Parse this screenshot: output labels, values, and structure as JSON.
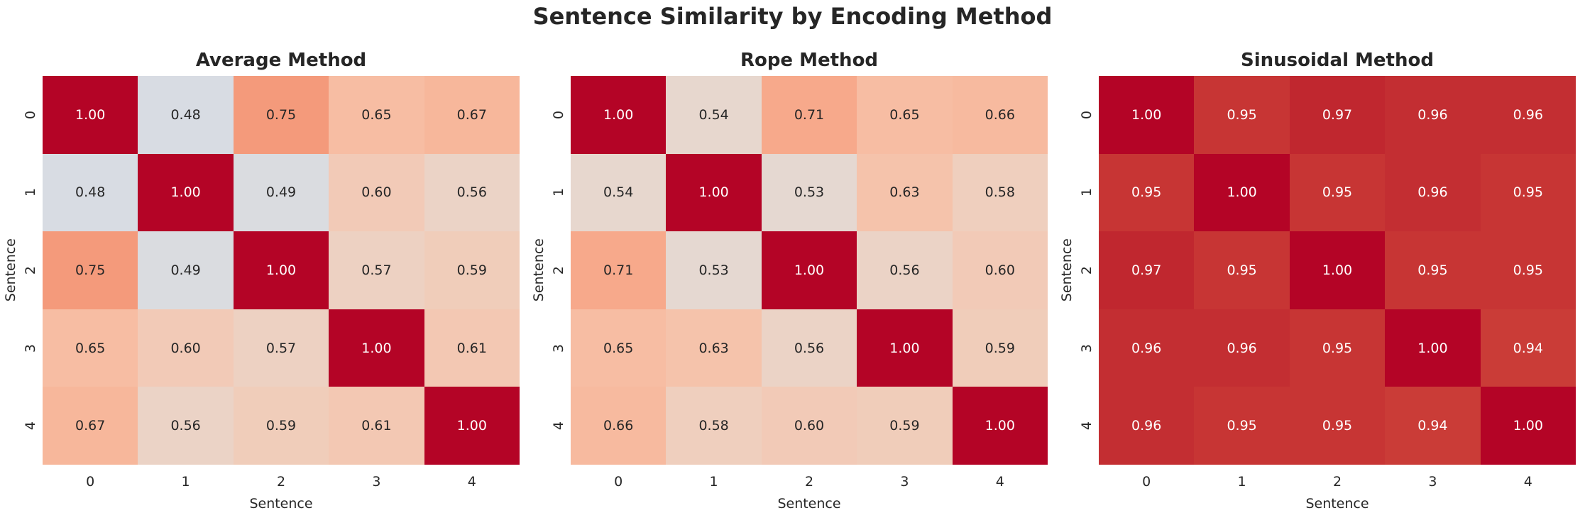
{
  "suptitle": "Sentence Similarity by Encoding Method",
  "colors": {
    "background": "#ffffff",
    "title_text": "#262626",
    "dark_annot_text": "#262626",
    "light_annot_text": "#ffffff",
    "diagonal_max_color": "#b40426"
  },
  "chart_data": [
    {
      "type": "heatmap",
      "title": "Average Method",
      "xlabel": "Sentence",
      "ylabel": "Sentence",
      "x_ticks": [
        "0",
        "1",
        "2",
        "3",
        "4"
      ],
      "y_ticks": [
        "0",
        "1",
        "2",
        "3",
        "4"
      ],
      "colormap": "coolwarm",
      "vmin": 0,
      "vmax": 1,
      "value_format": ".2f",
      "values": [
        [
          1.0,
          0.48,
          0.75,
          0.65,
          0.67
        ],
        [
          0.48,
          1.0,
          0.49,
          0.6,
          0.56
        ],
        [
          0.75,
          0.49,
          1.0,
          0.57,
          0.59
        ],
        [
          0.65,
          0.6,
          0.57,
          1.0,
          0.61
        ],
        [
          0.67,
          0.56,
          0.59,
          0.61,
          1.0
        ]
      ]
    },
    {
      "type": "heatmap",
      "title": "Rope Method",
      "xlabel": "Sentence",
      "ylabel": "Sentence",
      "x_ticks": [
        "0",
        "1",
        "2",
        "3",
        "4"
      ],
      "y_ticks": [
        "0",
        "1",
        "2",
        "3",
        "4"
      ],
      "colormap": "coolwarm",
      "vmin": 0,
      "vmax": 1,
      "value_format": ".2f",
      "values": [
        [
          1.0,
          0.54,
          0.71,
          0.65,
          0.66
        ],
        [
          0.54,
          1.0,
          0.53,
          0.63,
          0.58
        ],
        [
          0.71,
          0.53,
          1.0,
          0.56,
          0.6
        ],
        [
          0.65,
          0.63,
          0.56,
          1.0,
          0.59
        ],
        [
          0.66,
          0.58,
          0.6,
          0.59,
          1.0
        ]
      ]
    },
    {
      "type": "heatmap",
      "title": "Sinusoidal Method",
      "xlabel": "Sentence",
      "ylabel": "Sentence",
      "x_ticks": [
        "0",
        "1",
        "2",
        "3",
        "4"
      ],
      "y_ticks": [
        "0",
        "1",
        "2",
        "3",
        "4"
      ],
      "colormap": "coolwarm",
      "vmin": 0,
      "vmax": 1,
      "value_format": ".2f",
      "values": [
        [
          1.0,
          0.95,
          0.97,
          0.96,
          0.96
        ],
        [
          0.95,
          1.0,
          0.95,
          0.96,
          0.95
        ],
        [
          0.97,
          0.95,
          1.0,
          0.95,
          0.95
        ],
        [
          0.96,
          0.96,
          0.95,
          1.0,
          0.94
        ],
        [
          0.96,
          0.95,
          0.95,
          0.94,
          1.0
        ]
      ]
    }
  ]
}
